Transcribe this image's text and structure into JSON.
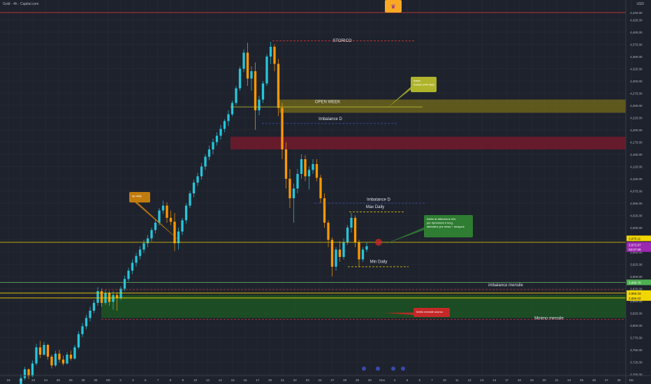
{
  "header": {
    "symbol": "Gold · 4h · Capital.com",
    "currency": "USD"
  },
  "chart_data": {
    "type": "candlestick",
    "price_axis": {
      "labels": [
        "4,440.00",
        "4,425.00",
        "4,400.00",
        "4,375.00",
        "4,350.00",
        "4,325.00",
        "4,300.00",
        "4,275.00",
        "4,250.00",
        "4,225.00",
        "4,200.00",
        "4,175.00",
        "4,150.00",
        "4,125.00",
        "4,100.00",
        "4,075.00",
        "4,050.00",
        "4,025.00",
        "4,000.00",
        "3,975.00",
        "3,950.00",
        "3,925.00",
        "3,900.00",
        "3,875.00",
        "3,850.00",
        "3,825.00",
        "3,800.00",
        "3,775.00",
        "3,750.00",
        "3,725.00",
        "3,700.00"
      ],
      "tags": [
        {
          "text": "3,970.11",
          "color": "#f2d600"
        },
        {
          "text": "3,972.87",
          "color": "#9c27b0"
        },
        {
          "text": "03:07:09",
          "color": "#9c27b0"
        },
        {
          "text": "3,889.78",
          "color": "#4caf50"
        },
        {
          "text": "3,866.33",
          "color": "#f2d600"
        },
        {
          "text": "3,856.02",
          "color": "#f2d600"
        }
      ]
    },
    "time_axis": [
      "19",
      "22",
      "23",
      "24",
      "25",
      "26",
      "29",
      "30",
      "Ott",
      "2",
      "3",
      "6",
      "7",
      "8",
      "9",
      "10",
      "13",
      "14",
      "15",
      "16",
      "17",
      "20",
      "21",
      "22",
      "23",
      "24",
      "27",
      "28",
      "29",
      "30",
      "Nov",
      "4",
      "5",
      "6",
      "7",
      "10",
      "11",
      "12",
      "13",
      "14",
      "17",
      "18",
      "19",
      "20",
      "21",
      "24",
      "25",
      "26",
      "27",
      "28",
      "Dic"
    ],
    "candles_ohlc": [
      [
        3680,
        3700,
        3670,
        3692
      ],
      [
        3692,
        3715,
        3688,
        3710
      ],
      [
        3710,
        3712,
        3690,
        3696
      ],
      [
        3696,
        3728,
        3694,
        3722
      ],
      [
        3722,
        3762,
        3718,
        3755
      ],
      [
        3755,
        3768,
        3733,
        3740
      ],
      [
        3740,
        3766,
        3738,
        3760
      ],
      [
        3760,
        3762,
        3730,
        3736
      ],
      [
        3736,
        3740,
        3712,
        3718
      ],
      [
        3718,
        3748,
        3715,
        3742
      ],
      [
        3742,
        3750,
        3724,
        3730
      ],
      [
        3730,
        3738,
        3718,
        3722
      ],
      [
        3722,
        3745,
        3720,
        3740
      ],
      [
        3740,
        3748,
        3728,
        3732
      ],
      [
        3732,
        3760,
        3730,
        3755
      ],
      [
        3755,
        3788,
        3752,
        3782
      ],
      [
        3782,
        3805,
        3776,
        3798
      ],
      [
        3798,
        3822,
        3792,
        3815
      ],
      [
        3815,
        3838,
        3808,
        3830
      ],
      [
        3830,
        3852,
        3825,
        3846
      ],
      [
        3846,
        3878,
        3840,
        3870
      ],
      [
        3870,
        3875,
        3838,
        3846
      ],
      [
        3846,
        3872,
        3842,
        3866
      ],
      [
        3866,
        3870,
        3840,
        3848
      ],
      [
        3848,
        3870,
        3832,
        3862
      ],
      [
        3862,
        3868,
        3830,
        3856
      ],
      [
        3856,
        3880,
        3852,
        3875
      ],
      [
        3875,
        3902,
        3870,
        3895
      ],
      [
        3895,
        3918,
        3890,
        3912
      ],
      [
        3912,
        3935,
        3905,
        3928
      ],
      [
        3928,
        3948,
        3920,
        3942
      ],
      [
        3942,
        3962,
        3935,
        3955
      ],
      [
        3955,
        3975,
        3948,
        3968
      ],
      [
        3968,
        3985,
        3960,
        3978
      ],
      [
        3978,
        4000,
        3972,
        3995
      ],
      [
        3995,
        4018,
        3988,
        4010
      ],
      [
        4010,
        4040,
        4005,
        4035
      ],
      [
        4035,
        4055,
        4028,
        4045
      ],
      [
        4045,
        4052,
        4010,
        4020
      ],
      [
        4020,
        4035,
        4005,
        4012
      ],
      [
        4012,
        4030,
        3952,
        3968
      ],
      [
        3968,
        4000,
        3955,
        3992
      ],
      [
        3992,
        4020,
        3985,
        4015
      ],
      [
        4015,
        4050,
        4008,
        4045
      ],
      [
        4045,
        4075,
        4040,
        4070
      ],
      [
        4070,
        4098,
        4062,
        4092
      ],
      [
        4092,
        4112,
        4085,
        4105
      ],
      [
        4105,
        4132,
        4098,
        4125
      ],
      [
        4125,
        4150,
        4118,
        4145
      ],
      [
        4145,
        4168,
        4138,
        4160
      ],
      [
        4160,
        4182,
        4150,
        4175
      ],
      [
        4175,
        4195,
        4168,
        4188
      ],
      [
        4188,
        4210,
        4180,
        4202
      ],
      [
        4202,
        4222,
        4195,
        4218
      ],
      [
        4218,
        4240,
        4208,
        4232
      ],
      [
        4232,
        4260,
        4228,
        4255
      ],
      [
        4255,
        4290,
        4250,
        4285
      ],
      [
        4285,
        4330,
        4280,
        4325
      ],
      [
        4325,
        4365,
        4318,
        4358
      ],
      [
        4358,
        4378,
        4290,
        4305
      ],
      [
        4305,
        4330,
        4280,
        4320
      ],
      [
        4320,
        4338,
        4200,
        4240
      ],
      [
        4240,
        4270,
        4230,
        4262
      ],
      [
        4262,
        4300,
        4255,
        4295
      ],
      [
        4295,
        4355,
        4290,
        4350
      ],
      [
        4350,
        4380,
        4335,
        4370
      ],
      [
        4370,
        4375,
        4320,
        4335
      ],
      [
        4335,
        4345,
        4228,
        4245
      ],
      [
        4245,
        4255,
        4140,
        4160
      ],
      [
        4160,
        4175,
        4080,
        4100
      ],
      [
        4100,
        4120,
        4040,
        4060
      ],
      [
        4060,
        4090,
        4010,
        4080
      ],
      [
        4080,
        4120,
        4070,
        4110
      ],
      [
        4110,
        4150,
        4100,
        4140
      ],
      [
        4140,
        4148,
        4095,
        4105
      ],
      [
        4105,
        4125,
        4078,
        4118
      ],
      [
        4118,
        4140,
        4110,
        4130
      ],
      [
        4130,
        4140,
        4095,
        4102
      ],
      [
        4102,
        4108,
        4050,
        4060
      ],
      [
        4060,
        4070,
        4000,
        4010
      ],
      [
        4010,
        4015,
        3960,
        3975
      ],
      [
        3975,
        3980,
        3900,
        3920
      ],
      [
        3920,
        3960,
        3912,
        3955
      ],
      [
        3955,
        3972,
        3930,
        3940
      ],
      [
        3940,
        3978,
        3935,
        3970
      ],
      [
        3970,
        4005,
        3965,
        4000
      ],
      [
        4000,
        4030,
        3990,
        4020
      ],
      [
        4020,
        4025,
        3960,
        3970
      ],
      [
        3970,
        3975,
        3920,
        3935
      ],
      [
        3935,
        3960,
        3930,
        3955
      ],
      [
        3955,
        3970,
        3950,
        3962
      ]
    ],
    "annotations": [
      {
        "text": "STORICO",
        "price": 4380
      },
      {
        "text": "OPEN WEEK",
        "price": 4255
      },
      {
        "text": "Imbalance D",
        "price": 4220
      },
      {
        "text": "Imbalance D",
        "price": 4055
      },
      {
        "text": "Max Daily",
        "price": 4040
      },
      {
        "text": "Min Daily",
        "price": 3928
      },
      {
        "text": "imbalance mensile",
        "price": 3880
      },
      {
        "text": "Minimo mensile",
        "price": 3812
      }
    ],
    "callouts": [
      {
        "text": [
          "livello",
          "market shift daily"
        ],
        "color": "#afb42b"
      },
      {
        "text": [
          "sp daily"
        ],
        "color": "#c27c0e"
      },
      {
        "text": [
          "livello di attenzione mio.",
          "per riprendere il long,",
          "attendere pre news + newyork"
        ],
        "color": "#2e7d32"
      },
      {
        "text": [
          "livello mensile scorso"
        ],
        "color": "#c62828"
      }
    ],
    "colors": {
      "bg": "#1e222d",
      "up": "#26c6da",
      "down": "#ff9800",
      "grid": "#2a2e39"
    }
  }
}
